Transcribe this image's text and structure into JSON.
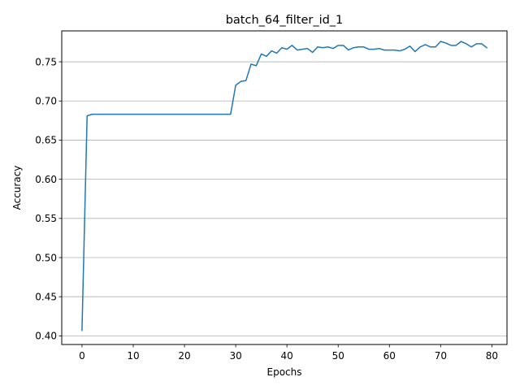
{
  "chart_data": {
    "type": "line",
    "title": "batch_64_filter_id_1",
    "xlabel": "Epochs",
    "ylabel": "Accuracy",
    "xlim": [
      -3.95,
      82.95
    ],
    "ylim": [
      0.389,
      0.7895
    ],
    "xticks": [
      0,
      10,
      20,
      30,
      40,
      50,
      60,
      70,
      80
    ],
    "yticks": [
      0.4,
      0.45,
      0.5,
      0.55,
      0.6,
      0.65,
      0.7,
      0.75
    ],
    "ytick_labels": [
      "0.40",
      "0.45",
      "0.50",
      "0.55",
      "0.60",
      "0.65",
      "0.70",
      "0.75"
    ],
    "grid": "y",
    "line_color": "#1f77b4",
    "series": [
      {
        "name": "accuracy",
        "x": [
          0,
          1,
          2,
          3,
          4,
          5,
          6,
          7,
          8,
          9,
          10,
          11,
          12,
          13,
          14,
          15,
          16,
          17,
          18,
          19,
          20,
          21,
          22,
          23,
          24,
          25,
          26,
          27,
          28,
          29,
          30,
          31,
          32,
          33,
          34,
          35,
          36,
          37,
          38,
          39,
          40,
          41,
          42,
          43,
          44,
          45,
          46,
          47,
          48,
          49,
          50,
          51,
          52,
          53,
          54,
          55,
          56,
          57,
          58,
          59,
          60,
          61,
          62,
          63,
          64,
          65,
          66,
          67,
          68,
          69,
          70,
          71,
          72,
          73,
          74,
          75,
          76,
          77,
          78,
          79
        ],
        "values": [
          0.407,
          0.681,
          0.683,
          0.683,
          0.683,
          0.683,
          0.683,
          0.683,
          0.683,
          0.683,
          0.683,
          0.683,
          0.683,
          0.683,
          0.683,
          0.683,
          0.683,
          0.683,
          0.683,
          0.683,
          0.683,
          0.683,
          0.683,
          0.683,
          0.683,
          0.683,
          0.683,
          0.683,
          0.683,
          0.683,
          0.72,
          0.725,
          0.726,
          0.747,
          0.745,
          0.76,
          0.757,
          0.764,
          0.761,
          0.768,
          0.766,
          0.771,
          0.765,
          0.766,
          0.767,
          0.762,
          0.769,
          0.768,
          0.769,
          0.767,
          0.771,
          0.771,
          0.765,
          0.768,
          0.769,
          0.769,
          0.766,
          0.766,
          0.767,
          0.765,
          0.765,
          0.765,
          0.764,
          0.766,
          0.77,
          0.763,
          0.769,
          0.772,
          0.769,
          0.769,
          0.776,
          0.774,
          0.771,
          0.771,
          0.776,
          0.773,
          0.769,
          0.773,
          0.773,
          0.768
        ]
      }
    ]
  }
}
